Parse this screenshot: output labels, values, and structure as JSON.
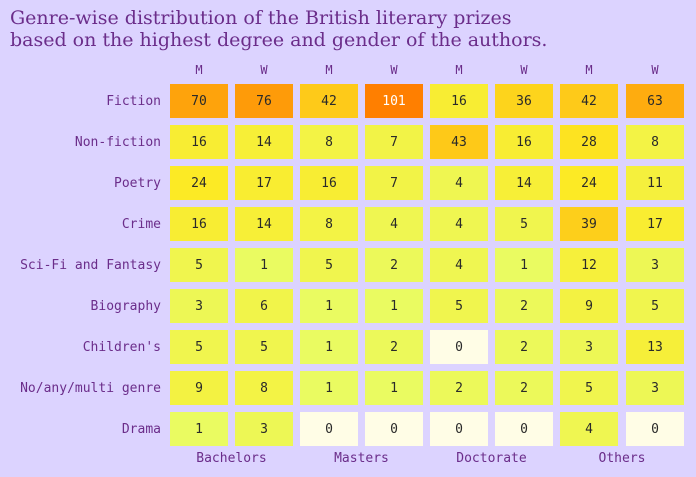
{
  "chart_data": {
    "type": "heatmap",
    "title_lines": [
      "Genre-wise distribution of the British literary prizes",
      "based on the highest degree and gender of the authors."
    ],
    "groups": [
      "Bachelors",
      "Masters",
      "Doctorate",
      "Others"
    ],
    "genders": [
      "M",
      "W"
    ],
    "rows": [
      "Fiction",
      "Non-fiction",
      "Poetry",
      "Crime",
      "Sci-Fi and Fantasy",
      "Biography",
      "Children's",
      "No/any/multi genre",
      "Drama"
    ],
    "values": [
      [
        70,
        76,
        42,
        101,
        16,
        36,
        42,
        63
      ],
      [
        16,
        14,
        8,
        7,
        43,
        16,
        28,
        8
      ],
      [
        24,
        17,
        16,
        7,
        4,
        14,
        24,
        11
      ],
      [
        16,
        14,
        8,
        4,
        4,
        5,
        39,
        17
      ],
      [
        5,
        1,
        5,
        2,
        4,
        1,
        12,
        3
      ],
      [
        3,
        6,
        1,
        1,
        5,
        2,
        9,
        5
      ],
      [
        5,
        5,
        1,
        2,
        0,
        2,
        3,
        13
      ],
      [
        9,
        8,
        1,
        1,
        2,
        2,
        5,
        3
      ],
      [
        1,
        3,
        0,
        0,
        0,
        0,
        4,
        0
      ]
    ],
    "colors": {
      "background": "#dcd3ff",
      "label_text": "#6b2d8a",
      "cell_zero": "#fffde6",
      "cell_low": "#e5ff70",
      "cell_mid": "#fde923",
      "cell_high": "#ff7f00",
      "cell_text_dark": "#2a2a2a",
      "cell_text_light": "#ffffff"
    }
  }
}
